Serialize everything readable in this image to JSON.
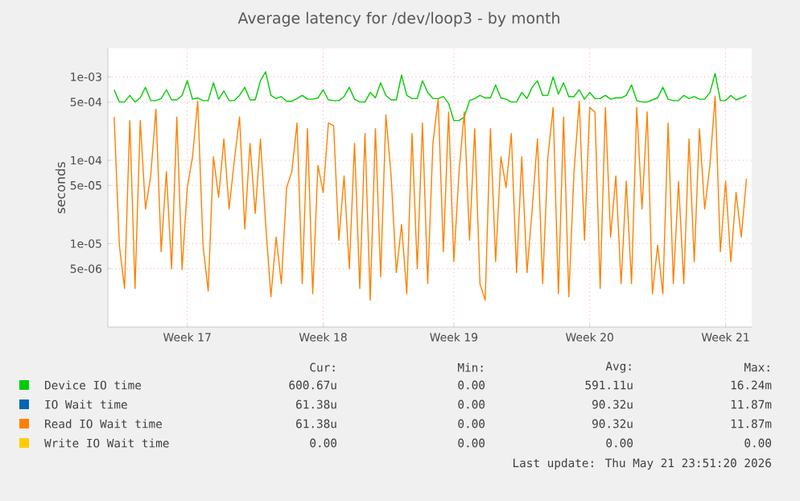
{
  "chart_data": {
    "type": "line",
    "title": "Average latency for /dev/loop3 - by month",
    "ylabel": "seconds",
    "log": "y",
    "grid": true,
    "legend": "bottom",
    "ylim": [
      1e-06,
      0.0022
    ],
    "yticks": [
      {
        "value": 5e-06,
        "label": "5e-06"
      },
      {
        "value": 1e-05,
        "label": "1e-05"
      },
      {
        "value": 5e-05,
        "label": "5e-05"
      },
      {
        "value": 0.0001,
        "label": "1e-04"
      },
      {
        "value": 0.0005,
        "label": "5e-04"
      },
      {
        "value": 0.001,
        "label": "1e-03"
      }
    ],
    "categories": [
      null,
      null,
      null,
      null,
      null,
      null,
      null,
      null,
      null,
      null,
      null,
      null,
      null,
      null,
      "Week 17",
      null,
      null,
      null,
      null,
      null,
      null,
      null,
      null,
      null,
      null,
      null,
      null,
      null,
      null,
      null,
      null,
      null,
      null,
      null,
      null,
      null,
      null,
      null,
      null,
      null,
      "Week 18",
      null,
      null,
      null,
      null,
      null,
      null,
      null,
      null,
      null,
      null,
      null,
      null,
      null,
      null,
      null,
      null,
      null,
      null,
      null,
      null,
      null,
      null,
      null,
      null,
      "Week 19",
      null,
      null,
      null,
      null,
      null,
      null,
      null,
      null,
      null,
      null,
      null,
      null,
      null,
      null,
      null,
      null,
      null,
      null,
      null,
      null,
      null,
      null,
      null,
      null,
      null,
      "Week 20",
      null,
      null,
      null,
      null,
      null,
      null,
      null,
      null,
      null,
      null,
      null,
      null,
      null,
      null,
      null,
      null,
      null,
      null,
      null,
      null,
      null,
      null,
      null,
      null,
      null,
      "Week 21",
      null,
      null,
      null,
      null
    ],
    "series": [
      {
        "name": "Device IO time",
        "color": "#00cc00",
        "values": [
          0.0007,
          0.0005,
          0.0005,
          0.0006,
          0.0005,
          0.00056,
          0.00075,
          0.00052,
          0.00052,
          0.00055,
          0.0007,
          0.00053,
          0.00053,
          0.0006,
          0.0009,
          0.00054,
          0.00056,
          0.00052,
          0.00052,
          0.00085,
          0.00054,
          0.00068,
          0.00052,
          0.00052,
          0.0006,
          0.00075,
          0.00053,
          0.00053,
          0.0009,
          0.00115,
          0.0006,
          0.00055,
          0.00058,
          0.00051,
          0.00051,
          0.00055,
          0.0006,
          0.00054,
          0.00054,
          0.00056,
          0.0007,
          0.00053,
          0.00052,
          0.00052,
          0.00058,
          0.00075,
          0.00054,
          0.0005,
          0.0005,
          0.00065,
          0.00056,
          0.00085,
          0.0006,
          0.00053,
          0.00053,
          0.00105,
          0.0006,
          0.00055,
          0.00055,
          0.0009,
          0.00065,
          0.00055,
          0.00055,
          0.00058,
          0.00048,
          0.0003,
          0.0003,
          0.00033,
          0.00052,
          0.00055,
          0.0006,
          0.00056,
          0.00056,
          0.0008,
          0.00056,
          0.00054,
          0.0005,
          0.0005,
          0.00065,
          0.00055,
          0.00075,
          0.0009,
          0.0006,
          0.0006,
          0.001,
          0.00062,
          0.00085,
          0.00058,
          0.00058,
          0.0007,
          0.00054,
          0.00065,
          0.00055,
          0.00055,
          0.0006,
          0.00054,
          0.00056,
          0.00056,
          0.0006,
          0.0008,
          0.00052,
          0.0005,
          0.0005,
          0.00053,
          0.00056,
          0.00075,
          0.00054,
          0.00052,
          0.00052,
          0.0006,
          0.00055,
          0.00058,
          0.00054,
          0.00054,
          0.00065,
          0.0011,
          0.00052,
          0.00052,
          0.0006,
          0.00053,
          0.00056,
          0.0006
        ]
      },
      {
        "name": "IO Wait time",
        "color": "#0066b3",
        "values": [
          null,
          null,
          null,
          null,
          null,
          null,
          null,
          null,
          null,
          null,
          null,
          null,
          null,
          null,
          null,
          null,
          null,
          null,
          null,
          null,
          null,
          null,
          null,
          null,
          null,
          null,
          null,
          null,
          null,
          null,
          null,
          null,
          null,
          null,
          null,
          null,
          null,
          null,
          null,
          null,
          null,
          null,
          null,
          null,
          null,
          null,
          null,
          null,
          null,
          null,
          null,
          null,
          null,
          null,
          null,
          null,
          null,
          null,
          null,
          null,
          null,
          null,
          null,
          null,
          null,
          null,
          null,
          null,
          null,
          null,
          null,
          null,
          null,
          null,
          null,
          null,
          null,
          null,
          null,
          null,
          null,
          null,
          null,
          null,
          null,
          null,
          null,
          null,
          null,
          null,
          null,
          null,
          null,
          null,
          null,
          null,
          null,
          null,
          null,
          null,
          null,
          null,
          null,
          null,
          null,
          null,
          null,
          null,
          null,
          null,
          null,
          null,
          null,
          null,
          null,
          null,
          null,
          null,
          null,
          null,
          null,
          null
        ]
      },
      {
        "name": "Read IO Wait time",
        "color": "#ff8000",
        "values": [
          0.00033,
          9.5e-06,
          2.9e-06,
          0.0003,
          2.9e-06,
          0.0003,
          2.6e-05,
          6.5e-05,
          0.00041,
          8e-06,
          7.3e-05,
          5e-06,
          0.00033,
          4.9e-06,
          4.7e-05,
          0.00011,
          0.00051,
          9.6e-06,
          2.7e-06,
          0.00011,
          3.6e-05,
          0.00018,
          2.6e-05,
          0.0001,
          0.00033,
          1.5e-05,
          0.00016,
          2.3e-05,
          0.00018,
          1.7e-05,
          2.3e-06,
          1.2e-05,
          3.3e-06,
          4.7e-05,
          7.3e-05,
          0.00028,
          3.3e-06,
          0.00024,
          2.5e-06,
          8.7e-05,
          4.1e-05,
          0.00028,
          0.00026,
          1.1e-05,
          6.5e-05,
          5e-06,
          0.00016,
          2.9e-06,
          0.00021,
          2.1e-06,
          0.00024,
          4e-06,
          0.00035,
          6.5e-05,
          4.5e-06,
          1.7e-05,
          2.5e-06,
          0.00021,
          5e-06,
          0.00028,
          3.3e-06,
          0.00016,
          0.00054,
          8e-06,
          0.00038,
          6.1e-06,
          7.3e-05,
          0.00038,
          1.1e-05,
          0.00024,
          3.3e-06,
          2.1e-06,
          0.00024,
          6.1e-06,
          0.00011,
          4.7e-05,
          0.00021,
          4.5e-06,
          0.00011,
          4.5e-06,
          2.6e-05,
          0.00018,
          3.3e-06,
          0.00011,
          0.00043,
          2.5e-06,
          0.00033,
          2.3e-06,
          7.3e-05,
          0.00051,
          1.1e-05,
          0.00043,
          0.00038,
          2.9e-06,
          0.00043,
          1.2e-05,
          6.5e-05,
          3.3e-06,
          5.6e-05,
          3.3e-06,
          0.00043,
          2.6e-05,
          0.00038,
          2.5e-06,
          9.6e-06,
          2.5e-06,
          0.00028,
          3.3e-06,
          5.6e-05,
          3.3e-06,
          0.00018,
          6.1e-06,
          0.00024,
          2.6e-05,
          8.7e-05,
          0.00059,
          8e-06,
          5.6e-05,
          6.1e-06,
          4.1e-05,
          1.2e-05,
          6e-05
        ]
      },
      {
        "name": "Write IO Wait time",
        "color": "#ffcc00",
        "values": [
          null,
          null,
          null,
          null,
          null,
          null,
          null,
          null,
          null,
          null,
          null,
          null,
          null,
          null,
          null,
          null,
          null,
          null,
          null,
          null,
          null,
          null,
          null,
          null,
          null,
          null,
          null,
          null,
          null,
          null,
          null,
          null,
          null,
          null,
          null,
          null,
          null,
          null,
          null,
          null,
          null,
          null,
          null,
          null,
          null,
          null,
          null,
          null,
          null,
          null,
          null,
          null,
          null,
          null,
          null,
          null,
          null,
          null,
          null,
          null,
          null,
          null,
          null,
          null,
          null,
          null,
          null,
          null,
          null,
          null,
          null,
          null,
          null,
          null,
          null,
          null,
          null,
          null,
          null,
          null,
          null,
          null,
          null,
          null,
          null,
          null,
          null,
          null,
          null,
          null,
          null,
          null,
          null,
          null,
          null,
          null,
          null,
          null,
          null,
          null,
          null,
          null,
          null,
          null,
          null,
          null,
          null,
          null,
          null,
          null,
          null,
          null,
          null,
          null,
          null,
          null,
          null,
          null,
          null,
          null,
          null,
          null
        ]
      }
    ],
    "annotations": [
      "Cur:",
      "Min:",
      "Avg:",
      "Max:",
      "600.67u",
      "0.00",
      "591.11u",
      "16.24m",
      "61.38u",
      "0.00",
      "90.32u",
      "11.87m",
      "61.38u",
      "0.00",
      "90.32u",
      "11.87m",
      "0.00",
      "0.00",
      "0.00",
      "0.00",
      "Last update: Thu May 21 23:51:20 2026"
    ]
  }
}
